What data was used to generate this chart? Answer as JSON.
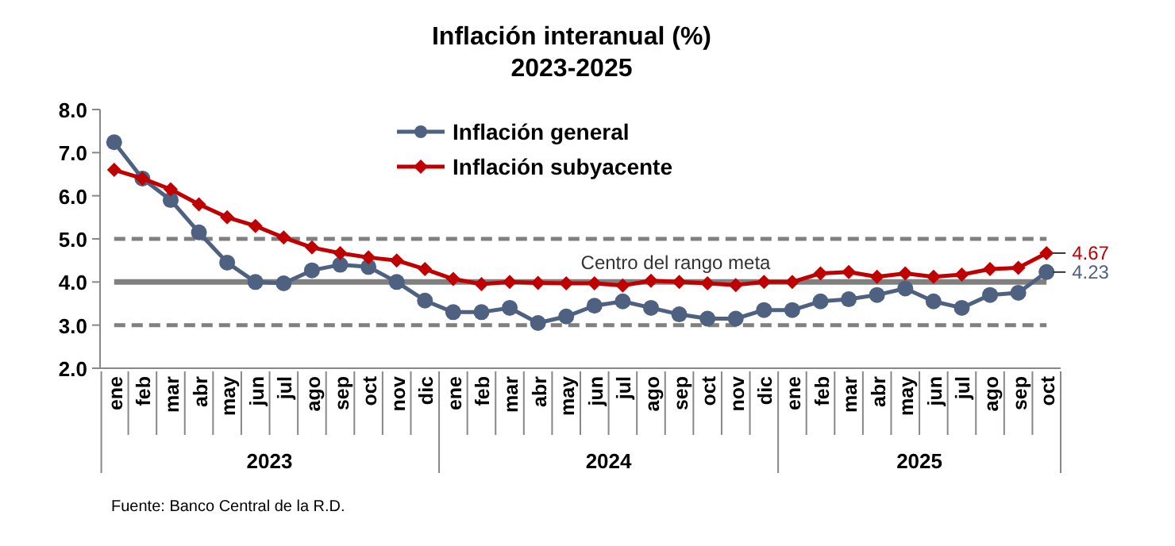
{
  "chart_data": {
    "type": "line",
    "title": "Inflación interanual (%)",
    "subtitle": "2023-2025",
    "categories": [
      "ene",
      "feb",
      "mar",
      "abr",
      "may",
      "jun",
      "jul",
      "ago",
      "sep",
      "oct",
      "nov",
      "dic",
      "ene",
      "feb",
      "mar",
      "abr",
      "may",
      "jun",
      "jul",
      "ago",
      "sep",
      "oct",
      "nov",
      "dic",
      "ene",
      "feb",
      "mar",
      "abr",
      "may",
      "jun",
      "jul",
      "ago",
      "sep",
      "oct"
    ],
    "series": [
      {
        "name": "Inflación general",
        "color": "#4f6180",
        "marker": "circle",
        "values": [
          7.24,
          6.4,
          5.9,
          5.15,
          4.45,
          4.0,
          3.97,
          4.27,
          4.4,
          4.35,
          4.0,
          3.57,
          3.3,
          3.3,
          3.4,
          3.05,
          3.2,
          3.45,
          3.55,
          3.4,
          3.25,
          3.15,
          3.15,
          3.35,
          3.35,
          3.55,
          3.6,
          3.7,
          3.85,
          3.55,
          3.4,
          3.7,
          3.75,
          4.23
        ],
        "value_labels": [
          null,
          null,
          null,
          null,
          null,
          null,
          null,
          null,
          null,
          null,
          null,
          null,
          null,
          null,
          null,
          null,
          null,
          null,
          null,
          null,
          null,
          null,
          null,
          null,
          null,
          null,
          null,
          null,
          null,
          null,
          null,
          null,
          null,
          "4.23"
        ]
      },
      {
        "name": "Inflación subyacente",
        "color": "#c00000",
        "marker": "diamond",
        "values": [
          6.6,
          6.4,
          6.15,
          5.8,
          5.5,
          5.3,
          5.03,
          4.8,
          4.67,
          4.57,
          4.5,
          4.3,
          4.07,
          3.95,
          4.0,
          3.98,
          3.97,
          3.97,
          3.92,
          4.03,
          4.0,
          3.97,
          3.93,
          4.0,
          4.0,
          4.2,
          4.23,
          4.12,
          4.2,
          4.12,
          4.17,
          4.3,
          4.33,
          4.67
        ],
        "value_labels": [
          null,
          null,
          null,
          null,
          null,
          null,
          null,
          null,
          null,
          null,
          null,
          null,
          null,
          null,
          null,
          null,
          null,
          null,
          null,
          null,
          null,
          null,
          null,
          null,
          null,
          null,
          null,
          null,
          null,
          null,
          null,
          null,
          null,
          "4.67"
        ]
      }
    ],
    "ylim": [
      2,
      8
    ],
    "yticks": [
      {
        "value": 2,
        "label": "2.0"
      },
      {
        "value": 3,
        "label": "3.0"
      },
      {
        "value": 4,
        "label": "4.0"
      },
      {
        "value": 5,
        "label": "5.0"
      },
      {
        "value": 6,
        "label": "6.0"
      },
      {
        "value": 7,
        "label": "7.0"
      },
      {
        "value": 8,
        "label": "8.0"
      }
    ],
    "ref_lines": [
      {
        "axis": "y",
        "value": 4,
        "label": "Centro del rango meta",
        "color": "#808080",
        "line_style": "solid"
      },
      {
        "axis": "y",
        "value": 5,
        "label": null,
        "color": "#808080",
        "line_style": "dashed"
      },
      {
        "axis": "y",
        "value": 3,
        "label": null,
        "color": "#808080",
        "line_style": "dashed"
      }
    ],
    "annotations": [
      "2023",
      "2024",
      "2025",
      "Fuente: Banco Central de la R.D."
    ],
    "legend": "top right",
    "grid": false
  }
}
